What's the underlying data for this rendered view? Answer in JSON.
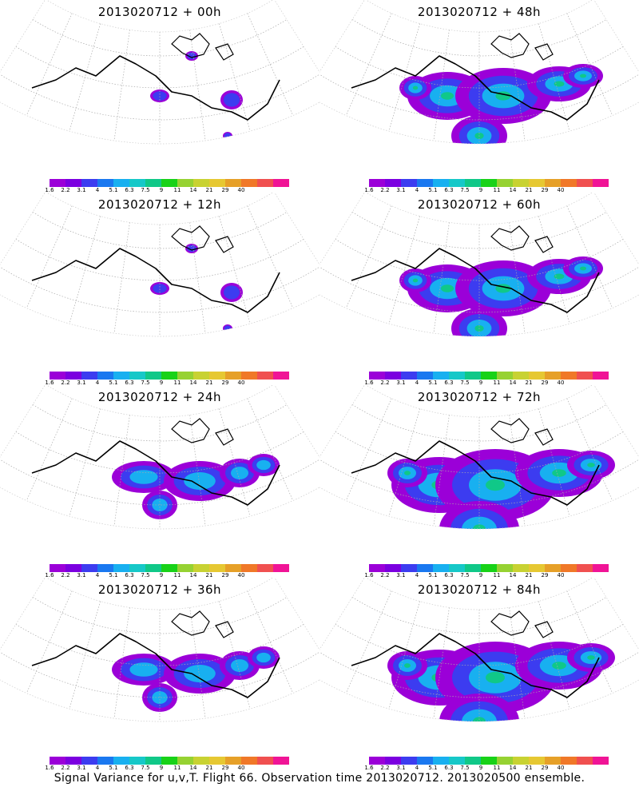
{
  "footer": "Signal Variance for u,v,T. Flight 66. Observation time 2013020712. 2013020500 ensemble.",
  "colorbar": {
    "colors": [
      "#9b00d8",
      "#7b00e0",
      "#3c3cf0",
      "#1a78f0",
      "#18b0f0",
      "#16c8c8",
      "#10c888",
      "#18d218",
      "#96d232",
      "#c8d232",
      "#e6c832",
      "#e6a028",
      "#f07828",
      "#f05050",
      "#f01496"
    ],
    "labels": [
      "1.6",
      "2.2",
      "3.1",
      "4",
      "5.1",
      "6.3",
      "7.5",
      "9",
      "11",
      "14",
      "21",
      "29",
      "40"
    ]
  },
  "panels": [
    {
      "title": "2013020712 + 00h",
      "intensity": 0
    },
    {
      "title": "2013020712 + 48h",
      "intensity": 2
    },
    {
      "title": "2013020712 + 12h",
      "intensity": 0
    },
    {
      "title": "2013020712 + 60h",
      "intensity": 2
    },
    {
      "title": "2013020712 + 24h",
      "intensity": 1
    },
    {
      "title": "2013020712 + 72h",
      "intensity": 3
    },
    {
      "title": "2013020712 + 36h",
      "intensity": 1
    },
    {
      "title": "2013020712 + 84h",
      "intensity": 3
    }
  ]
}
